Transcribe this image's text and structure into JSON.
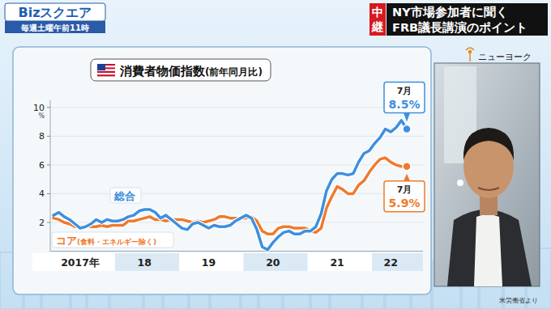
{
  "broadcast": {
    "logo": "Bizスクエア",
    "schedule": "毎週土曜午前11時",
    "live": "中継",
    "headline": [
      "NY市場参加者に聞く",
      "FRB議長講演のポイント"
    ],
    "location": "ニューヨーク"
  },
  "chart_data": {
    "type": "line",
    "title": "消費者物価指数(前年同月比)",
    "y_label": "%",
    "source": "米労働省より",
    "categories": [
      null,
      null,
      null,
      null,
      null,
      "2017年",
      null,
      null,
      null,
      null,
      null,
      null,
      null,
      null,
      null,
      null,
      null,
      "18",
      null,
      null,
      null,
      null,
      null,
      null,
      null,
      null,
      null,
      null,
      null,
      "19",
      null,
      null,
      null,
      null,
      null,
      null,
      null,
      null,
      null,
      null,
      null,
      "20",
      null,
      null,
      null,
      null,
      null,
      null,
      null,
      null,
      null,
      null,
      null,
      "21",
      null,
      null,
      null,
      null,
      null,
      null,
      null,
      null,
      null,
      "22",
      null,
      null,
      null
    ],
    "ylim": [
      0,
      10.5
    ],
    "yticks": [
      2,
      4,
      6,
      8,
      10
    ],
    "grid": true,
    "series": [
      {
        "name": "総合",
        "color": "#3d8fe0",
        "marker": "last",
        "end_label": {
          "month": "7月",
          "value_label": "8.5%"
        },
        "values": [
          2.5,
          2.7,
          2.4,
          2.2,
          1.9,
          1.6,
          1.7,
          1.9,
          2.2,
          2.0,
          2.2,
          2.1,
          2.1,
          2.2,
          2.4,
          2.5,
          2.8,
          2.9,
          2.9,
          2.7,
          2.3,
          2.5,
          2.2,
          1.9,
          1.6,
          1.5,
          1.9,
          2.0,
          1.8,
          1.6,
          1.8,
          1.7,
          1.7,
          1.8,
          2.1,
          2.3,
          2.5,
          2.3,
          1.5,
          0.3,
          0.1,
          0.6,
          1.0,
          1.3,
          1.4,
          1.2,
          1.2,
          1.4,
          1.4,
          1.7,
          2.6,
          4.2,
          5.0,
          5.4,
          5.4,
          5.3,
          5.4,
          6.2,
          6.8,
          7.0,
          7.5,
          7.9,
          8.5,
          8.3,
          8.6,
          9.1,
          8.5
        ]
      },
      {
        "name": "コア(食料・エネルギー除く)",
        "color": "#ef7a2c",
        "marker": "last",
        "end_label": {
          "month": "7月",
          "value_label": "5.9%"
        },
        "values": [
          2.3,
          2.2,
          2.0,
          1.9,
          1.7,
          1.7,
          1.7,
          1.7,
          1.7,
          1.8,
          1.7,
          1.8,
          1.8,
          1.8,
          2.1,
          2.1,
          2.2,
          2.3,
          2.4,
          2.2,
          2.2,
          2.1,
          2.2,
          2.2,
          2.2,
          2.1,
          2.0,
          2.1,
          2.0,
          2.1,
          2.2,
          2.4,
          2.4,
          2.3,
          2.3,
          2.3,
          2.3,
          2.4,
          2.1,
          1.4,
          1.2,
          1.2,
          1.6,
          1.7,
          1.7,
          1.6,
          1.6,
          1.6,
          1.4,
          1.3,
          1.6,
          3.0,
          3.8,
          4.5,
          4.3,
          4.0,
          4.0,
          4.6,
          4.9,
          5.5,
          6.0,
          6.4,
          6.5,
          6.2,
          6.0,
          5.9,
          5.9
        ]
      }
    ]
  }
}
